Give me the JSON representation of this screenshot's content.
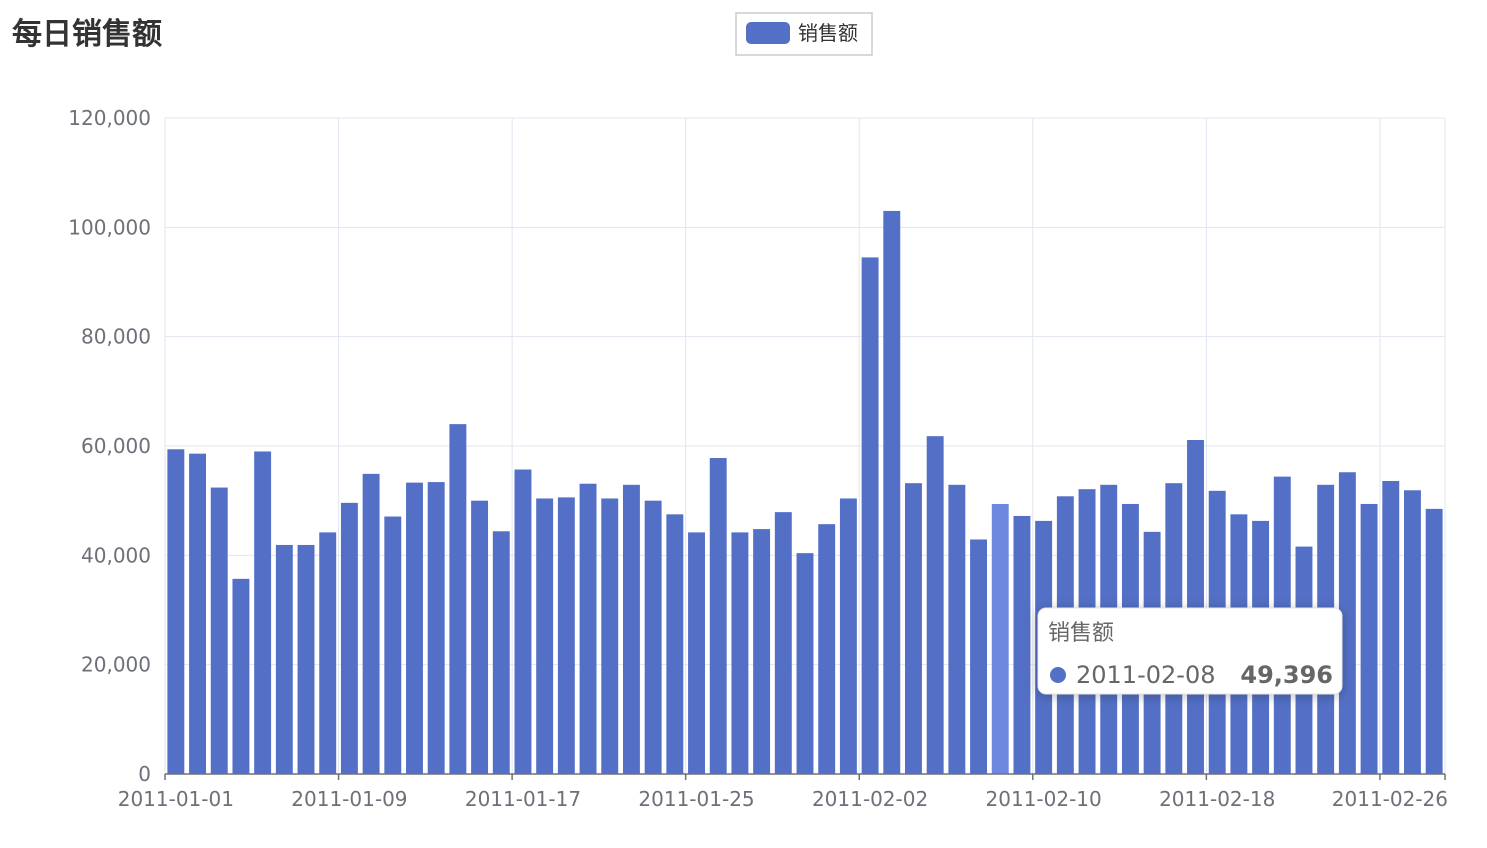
{
  "chart_data": {
    "type": "bar",
    "title": "每日销售额",
    "legend": {
      "placement": "top-center",
      "entries": [
        "销售额"
      ]
    },
    "color": "#5470c6",
    "highlight_color": "#6e88e0",
    "grid": true,
    "ylim": [
      0,
      120000
    ],
    "yticks": [
      "0",
      "20,000",
      "40,000",
      "60,000",
      "80,000",
      "100,000",
      "120,000"
    ],
    "xticks": [
      "2011-01-01",
      "2011-01-09",
      "2011-01-17",
      "2011-01-25",
      "2011-02-02",
      "2011-02-10",
      "2011-02-18",
      "2011-02-26"
    ],
    "categories": [
      "2011-01-01",
      "2011-01-02",
      "2011-01-03",
      "2011-01-04",
      "2011-01-05",
      "2011-01-06",
      "2011-01-07",
      "2011-01-08",
      "2011-01-09",
      "2011-01-10",
      "2011-01-11",
      "2011-01-12",
      "2011-01-13",
      "2011-01-14",
      "2011-01-15",
      "2011-01-16",
      "2011-01-17",
      "2011-01-18",
      "2011-01-19",
      "2011-01-20",
      "2011-01-21",
      "2011-01-22",
      "2011-01-23",
      "2011-01-24",
      "2011-01-25",
      "2011-01-26",
      "2011-01-27",
      "2011-01-28",
      "2011-01-29",
      "2011-01-30",
      "2011-01-31",
      "2011-02-01",
      "2011-02-02",
      "2011-02-03",
      "2011-02-04",
      "2011-02-05",
      "2011-02-06",
      "2011-02-07",
      "2011-02-08",
      "2011-02-09",
      "2011-02-10",
      "2011-02-11",
      "2011-02-12",
      "2011-02-13",
      "2011-02-14",
      "2011-02-15",
      "2011-02-16",
      "2011-02-17",
      "2011-02-18",
      "2011-02-19",
      "2011-02-20",
      "2011-02-21",
      "2011-02-22",
      "2011-02-23",
      "2011-02-24",
      "2011-02-25",
      "2011-02-26",
      "2011-02-27",
      "2011-02-28"
    ],
    "series": [
      {
        "name": "销售额",
        "values": [
          59400,
          58600,
          52400,
          35700,
          59000,
          41900,
          41900,
          44200,
          49600,
          54900,
          47100,
          53300,
          53400,
          64000,
          50000,
          44400,
          55700,
          50400,
          50600,
          53100,
          50400,
          52900,
          50000,
          47500,
          44200,
          57800,
          44200,
          44800,
          47900,
          40400,
          45700,
          50400,
          94500,
          103000,
          53200,
          61800,
          52900,
          42900,
          49396,
          47200,
          46300,
          50800,
          52100,
          52900,
          49400,
          44300,
          53200,
          61100,
          51800,
          47500,
          46300,
          54400,
          41600,
          52900,
          55200,
          49400,
          53600,
          51900,
          48500
        ]
      }
    ],
    "tooltip": {
      "series_name": "销售额",
      "category": "2011-02-08",
      "value_text": "49,396",
      "index": 38
    }
  }
}
